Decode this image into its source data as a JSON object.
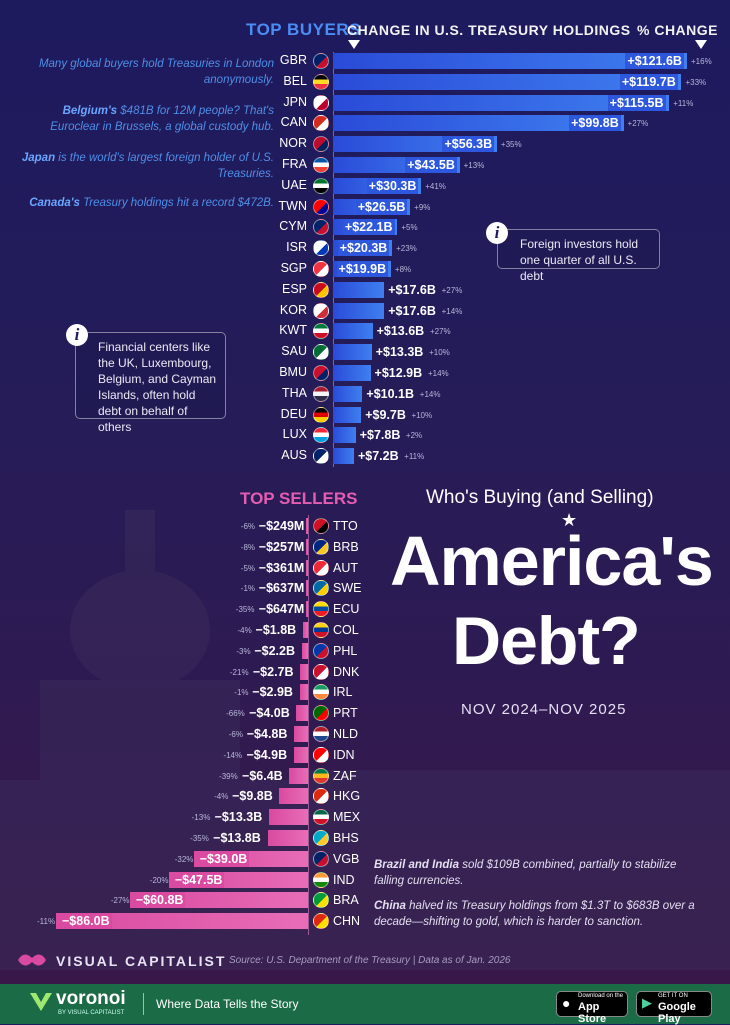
{
  "chart_data": [
    {
      "type": "bar",
      "title": "TOP BUYERS",
      "xlabel": "CHANGE IN U.S. TREASURY HOLDINGS",
      "pct_label": "% CHANGE",
      "unit": "$B",
      "categories": [
        "GBR",
        "BEL",
        "JPN",
        "CAN",
        "NOR",
        "FRA",
        "UAE",
        "TWN",
        "CYM",
        "ISR",
        "SGP",
        "ESP",
        "KOR",
        "KWT",
        "SAU",
        "BMU",
        "THA",
        "DEU",
        "LUX",
        "AUS"
      ],
      "values": [
        121.6,
        119.7,
        115.5,
        99.8,
        56.3,
        43.5,
        30.3,
        26.5,
        22.1,
        20.3,
        19.9,
        17.6,
        17.6,
        13.6,
        13.3,
        12.9,
        10.1,
        9.7,
        7.8,
        7.2
      ],
      "labels": [
        "+$121.6B",
        "+$119.7B",
        "+$115.5B",
        "+$99.8B",
        "+$56.3B",
        "+$43.5B",
        "+$30.3B",
        "+$26.5B",
        "+$22.1B",
        "+$20.3B",
        "+$19.9B",
        "+$17.6B",
        "+$17.6B",
        "+$13.6B",
        "+$13.3B",
        "+$12.9B",
        "+$10.1B",
        "+$9.7B",
        "+$7.8B",
        "+$7.2B"
      ],
      "pct": [
        "+16%",
        "+33%",
        "+11%",
        "+27%",
        "+35%",
        "+13%",
        "+41%",
        "+9%",
        "+5%",
        "+23%",
        "+8%",
        "+27%",
        "+14%",
        "+27%",
        "+10%",
        "+14%",
        "+14%",
        "+10%",
        "+2%",
        "+11%"
      ]
    },
    {
      "type": "bar",
      "title": "TOP SELLERS",
      "unit": "$B",
      "categories": [
        "TTO",
        "BRB",
        "AUT",
        "SWE",
        "ECU",
        "COL",
        "PHL",
        "DNK",
        "IRL",
        "PRT",
        "NLD",
        "IDN",
        "ZAF",
        "HKG",
        "MEX",
        "BHS",
        "VGB",
        "IND",
        "BRA",
        "CHN"
      ],
      "values": [
        -0.249,
        -0.257,
        -0.361,
        -0.637,
        -0.647,
        -1.8,
        -2.2,
        -2.7,
        -2.9,
        -4.0,
        -4.8,
        -4.9,
        -6.4,
        -9.8,
        -13.3,
        -13.8,
        -39.0,
        -47.5,
        -60.8,
        -86.0
      ],
      "labels": [
        "−$249M",
        "−$257M",
        "−$361M",
        "−$637M",
        "−$647M",
        "−$1.8B",
        "−$2.2B",
        "−$2.7B",
        "−$2.9B",
        "−$4.0B",
        "−$4.8B",
        "−$4.9B",
        "−$6.4B",
        "−$9.8B",
        "−$13.3B",
        "−$13.8B",
        "−$39.0B",
        "−$47.5B",
        "−$60.8B",
        "−$86.0B"
      ],
      "pct": [
        "-6%",
        "-8%",
        "-5%",
        "-1%",
        "-35%",
        "-4%",
        "-3%",
        "-21%",
        "-1%",
        "-66%",
        "-6%",
        "-14%",
        "-39%",
        "-4%",
        "-13%",
        "-35%",
        "-32%",
        "-20%",
        "-27%",
        "-11%"
      ]
    }
  ],
  "headers": {
    "buyers": "TOP BUYERS",
    "change": "CHANGE IN U.S. TREASURY HOLDINGS",
    "pct": "% CHANGE",
    "sellers": "TOP SELLERS"
  },
  "notes_left": [
    {
      "bold": "",
      "text": "Many global buyers hold Treasuries in London anonymously."
    },
    {
      "bold": "Belgium's",
      "text": " $481B for 12M people? That's Euroclear in Brussels, a global custody hub."
    },
    {
      "bold": "Japan",
      "text": " is the world's largest foreign holder of U.S. Treasuries."
    },
    {
      "bold": "Canada's",
      "text": " Treasury holdings hit a record $472B."
    }
  ],
  "info_foreign": "Foreign investors hold one quarter of all U.S. debt",
  "info_financial": "Financial centers like the UK, Luxembourg, Belgium, and Cayman Islands, often hold debt on behalf of others",
  "title": {
    "sub": "Who's Buying (and Selling)",
    "line1": "America's",
    "line2": "Debt?",
    "dates": "NOV 2024–NOV 2025"
  },
  "notes_right": [
    {
      "bold": "Brazil and India",
      "text": " sold $109B combined, partially to stabilize falling currencies."
    },
    {
      "bold": "China",
      "text": " halved its Treasury holdings from $1.3T to $683B over a decade—shifting to gold, which is harder to sanction."
    }
  ],
  "brand": "VISUAL CAPITALIST",
  "source": "Source: U.S. Department of the Treasury | Data as of Jan. 2026",
  "footer": {
    "logo": "voronoi",
    "logo_sub": "BY VISUAL CAPITALIST",
    "tagline": "Where Data Tells the Story",
    "appstore_small": "Download on the",
    "appstore": "App Store",
    "gplay_small": "GET IT ON",
    "gplay": "Google Play"
  },
  "colors": {
    "buyer_bar": "#3f7ff0",
    "seller_bar": "#e86db7",
    "footer": "#1a6b46"
  }
}
